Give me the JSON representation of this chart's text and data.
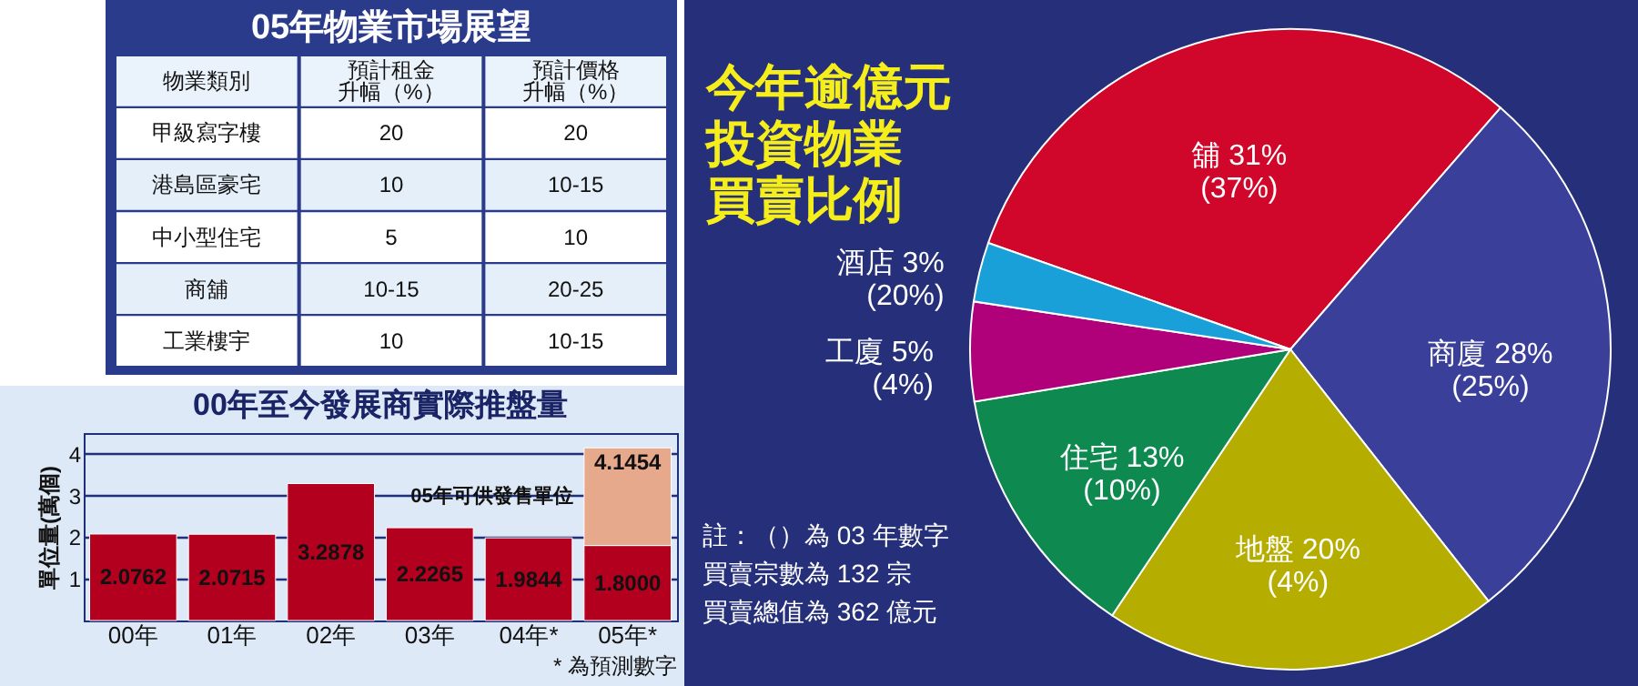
{
  "chart_data": [
    {
      "type": "other",
      "title": "05年物業市場展望",
      "annotations": [
        "物業類別",
        "預計租金升幅（%）",
        "預計價格升幅（%）",
        "甲級寫字樓",
        "20",
        "20",
        "港島區豪宅",
        "10",
        "10-15",
        "中小型住宅",
        "5",
        "10",
        "商舖",
        "10-15",
        "20-25",
        "工業樓宇",
        "10",
        "10-15"
      ]
    },
    {
      "type": "bar",
      "title": "00年至今發展商實際推盤量",
      "ylabel": "單位量(萬個)",
      "categories": [
        "00年",
        "01年",
        "02年",
        "03年",
        "04年*",
        "05年*"
      ],
      "stacked": true,
      "ylim": [
        0,
        4.5
      ],
      "yticks": [
        1,
        2,
        3,
        4
      ],
      "grid": "y",
      "series": [
        {
          "color": "#b3001e",
          "values": [
            2.0762,
            2.0715,
            3.2878,
            2.2265,
            1.9844,
            1.8
          ],
          "value_labels": [
            "2.0762",
            "2.0715",
            "3.2878",
            "2.2265",
            "1.9844",
            "1.8000"
          ]
        },
        {
          "name": "05年可供發售單位",
          "color": "#e6a98c",
          "values": [
            null,
            null,
            null,
            null,
            null,
            2.3454
          ]
        }
      ],
      "totals": [
        null,
        null,
        null,
        null,
        null,
        "4.1454"
      ],
      "annotations": [
        "* 為預測數字"
      ]
    },
    {
      "type": "pie",
      "title": "今年逾億元投資物業買賣比例",
      "categories": [
        "舖",
        "商廈",
        "地盤",
        "住宅",
        "工廈",
        "酒店"
      ],
      "values": [
        31,
        28,
        20,
        13,
        5,
        3
      ],
      "colors": [
        "#d0062a",
        "#3a3f9a",
        "#b5ad00",
        "#0e8a50",
        "#b0007a",
        "#1aa0d8"
      ],
      "value_labels": [
        "31% (37%)",
        "28% (25%)",
        "20% (4%)",
        "13% (10%)",
        "5% (4%)",
        "3% (20%)"
      ],
      "annotations": [
        "註：（）為 03 年數字",
        "買賣宗數為 132 宗",
        "買賣總值為 362 億元"
      ]
    }
  ]
}
